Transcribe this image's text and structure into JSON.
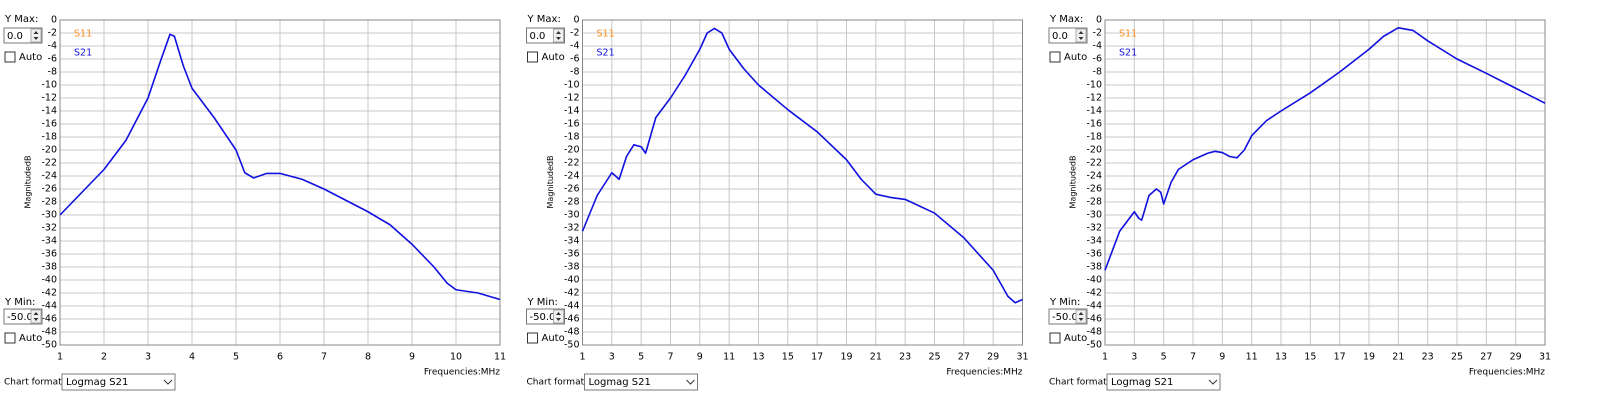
{
  "chart_data": [
    {
      "type": "line",
      "x_label": "Frequencies:MHz",
      "y_label": "MagnitudedB",
      "y_max_label": "Y Max:",
      "y_max": "0.0",
      "y_max_auto": "Auto",
      "y_min_label": "Y Min:",
      "y_min": "-50.0",
      "y_min_auto": "Auto",
      "format_label": "Chart format:",
      "format": "Logmag S21",
      "x": [
        1,
        1.5,
        2,
        2.5,
        3,
        3.3,
        3.5,
        3.6,
        3.8,
        4,
        4.5,
        5,
        5.2,
        5.4,
        5.7,
        6,
        6.5,
        7,
        8,
        8.5,
        9,
        9.5,
        9.8,
        10,
        10.5,
        11
      ],
      "series": [
        {
          "name": "S11",
          "color": "#ff8c1a",
          "values": [
            null,
            null,
            null,
            null,
            null,
            null,
            null,
            null,
            null,
            null,
            null,
            null,
            null,
            null,
            null,
            null,
            null,
            null,
            null,
            null,
            null,
            null,
            null,
            null,
            null,
            null
          ]
        },
        {
          "name": "S21",
          "color": "#1010e0",
          "values": [
            -30,
            -26.5,
            -23,
            -18.5,
            -12,
            -6,
            -2.2,
            -2.5,
            -7,
            -10.5,
            -15,
            -20,
            -23.5,
            -24.3,
            -23.6,
            -23.6,
            -24.5,
            -26,
            -29.5,
            -31.5,
            -34.5,
            -38,
            -40.5,
            -41.5,
            -42,
            -43
          ]
        }
      ],
      "xlim": [
        1,
        11
      ],
      "xticks": [
        1,
        2,
        3,
        4,
        5,
        6,
        7,
        8,
        9,
        10,
        11
      ],
      "ylim": [
        -50,
        0
      ],
      "yticks": [
        0,
        -2,
        -4,
        -6,
        -8,
        -10,
        -12,
        -14,
        -16,
        -18,
        -20,
        -22,
        -24,
        -26,
        -28,
        -30,
        -32,
        -34,
        -36,
        -38,
        -40,
        -42,
        -44,
        -46,
        -48,
        -50
      ],
      "grid": true
    },
    {
      "type": "line",
      "x_label": "Frequencies:MHz",
      "y_label": "MagnitudedB",
      "y_max_label": "Y Max:",
      "y_max": "0.0",
      "y_max_auto": "Auto",
      "y_min_label": "Y Min:",
      "y_min": "-50.0",
      "y_min_auto": "Auto",
      "format_label": "Chart format:",
      "format": "Logmag S21",
      "x": [
        1,
        2,
        3,
        3.5,
        4,
        4.5,
        5,
        5.3,
        6,
        7,
        8,
        9,
        9.5,
        10,
        10.5,
        11,
        12,
        13,
        15,
        17,
        19,
        20,
        21,
        22,
        23,
        25,
        27,
        29,
        30,
        30.5,
        31
      ],
      "series": [
        {
          "name": "S11",
          "color": "#ff8c1a",
          "values": [
            null,
            null,
            null,
            null,
            null,
            null,
            null,
            null,
            null,
            null,
            null,
            null,
            null,
            null,
            null,
            null,
            null,
            null,
            null,
            null,
            null,
            null,
            null,
            null,
            null,
            null,
            null,
            null,
            null,
            null,
            null
          ]
        },
        {
          "name": "S21",
          "color": "#1010e0",
          "values": [
            -32.5,
            -27,
            -23.5,
            -24.5,
            -21,
            -19.2,
            -19.5,
            -20.5,
            -15,
            -12,
            -8.5,
            -4.5,
            -2,
            -1.3,
            -2,
            -4.5,
            -7.5,
            -10,
            -13.8,
            -17.2,
            -21.5,
            -24.5,
            -26.8,
            -27.3,
            -27.6,
            -29.7,
            -33.5,
            -38.5,
            -42.5,
            -43.5,
            -43
          ]
        }
      ],
      "xlim": [
        1,
        31
      ],
      "xticks": [
        1,
        3,
        5,
        7,
        9,
        11,
        13,
        15,
        17,
        19,
        21,
        23,
        25,
        27,
        29,
        31
      ],
      "ylim": [
        -50,
        0
      ],
      "yticks": [
        0,
        -2,
        -4,
        -6,
        -8,
        -10,
        -12,
        -14,
        -16,
        -18,
        -20,
        -22,
        -24,
        -26,
        -28,
        -30,
        -32,
        -34,
        -36,
        -38,
        -40,
        -42,
        -44,
        -46,
        -48,
        -50
      ],
      "grid": true
    },
    {
      "type": "line",
      "x_label": "Frequencies:MHz",
      "y_label": "MagnitudedB",
      "y_max_label": "Y Max:",
      "y_max": "0.0",
      "y_max_auto": "Auto",
      "y_min_label": "Y Min:",
      "y_min": "-50.0",
      "y_min_auto": "Auto",
      "format_label": "Chart format:",
      "format": "Logmag S21",
      "x": [
        1,
        2,
        3,
        3.3,
        3.5,
        4,
        4.5,
        4.8,
        5,
        5.5,
        6,
        7,
        8,
        8.5,
        9,
        9.5,
        10,
        10.5,
        11,
        12,
        13,
        15,
        17,
        19,
        20,
        21,
        22,
        23,
        25,
        27,
        29,
        31
      ],
      "series": [
        {
          "name": "S11",
          "color": "#ff8c1a",
          "values": [
            null,
            null,
            null,
            null,
            null,
            null,
            null,
            null,
            null,
            null,
            null,
            null,
            null,
            null,
            null,
            null,
            null,
            null,
            null,
            null,
            null,
            null,
            null,
            null,
            null,
            null,
            null,
            null,
            null,
            null,
            null,
            null
          ]
        },
        {
          "name": "S21",
          "color": "#1010e0",
          "values": [
            -38.5,
            -32.5,
            -29.5,
            -30.5,
            -30.8,
            -27,
            -26,
            -26.5,
            -28.3,
            -25,
            -23,
            -21.5,
            -20.5,
            -20.2,
            -20.4,
            -21,
            -21.2,
            -20,
            -17.8,
            -15.5,
            -14,
            -11.2,
            -8,
            -4.5,
            -2.5,
            -1.2,
            -1.6,
            -3.2,
            -6,
            -8.2,
            -10.5,
            -12.8
          ]
        }
      ],
      "xlim": [
        1,
        31
      ],
      "xticks": [
        1,
        3,
        5,
        7,
        9,
        11,
        13,
        15,
        17,
        19,
        21,
        23,
        25,
        27,
        29,
        31
      ],
      "ylim": [
        -50,
        0
      ],
      "yticks": [
        0,
        -2,
        -4,
        -6,
        -8,
        -10,
        -12,
        -14,
        -16,
        -18,
        -20,
        -22,
        -24,
        -26,
        -28,
        -30,
        -32,
        -34,
        -36,
        -38,
        -40,
        -42,
        -44,
        -46,
        -48,
        -50
      ],
      "grid": true
    }
  ]
}
